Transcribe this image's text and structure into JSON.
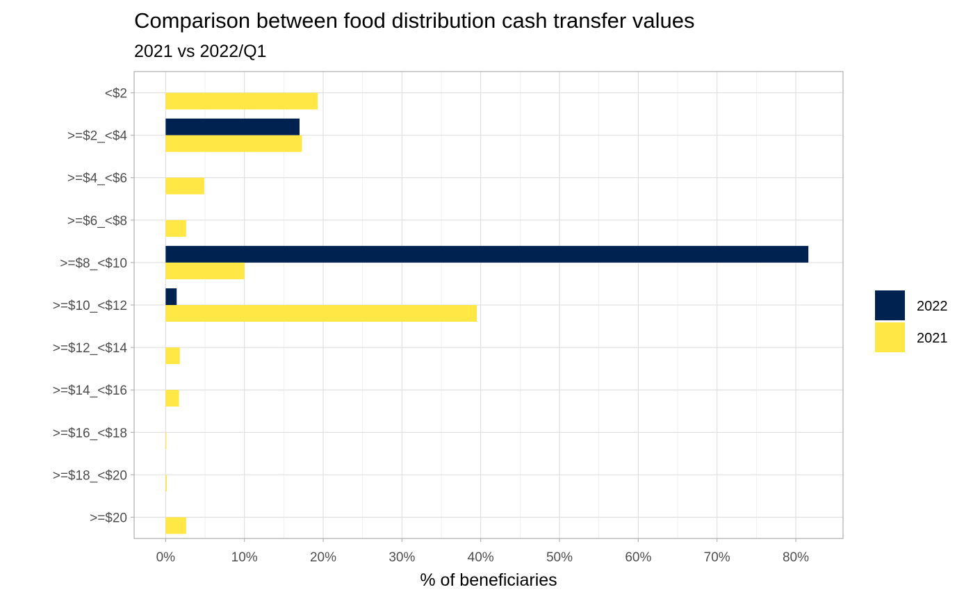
{
  "chart_data": {
    "type": "bar",
    "orientation": "horizontal",
    "title": "Comparison between food distribution cash transfer values",
    "subtitle": "2021 vs 2022/Q1",
    "xlabel": "% of beneficiaries",
    "ylabel": "",
    "xlim": [
      -4,
      86
    ],
    "x_ticks": [
      0,
      10,
      20,
      30,
      40,
      50,
      60,
      70,
      80
    ],
    "x_tick_labels": [
      "0%",
      "10%",
      "20%",
      "30%",
      "40%",
      "50%",
      "60%",
      "70%",
      "80%"
    ],
    "categories": [
      ">=$20",
      ">=$18_<$20",
      ">=$16_<$18",
      ">=$14_<$16",
      ">=$12_<$14",
      ">=$10_<$12",
      ">=$8_<$10",
      ">=$6_<$8",
      ">=$4_<$6",
      ">=$2_<$4",
      "<$2"
    ],
    "series": [
      {
        "name": "2022",
        "color": "#002250",
        "values": [
          0,
          0,
          0,
          0,
          0,
          1.4,
          81.6,
          0,
          0,
          17.0,
          0
        ]
      },
      {
        "name": "2021",
        "color": "#FFE845",
        "values": [
          2.6,
          0.15,
          0.1,
          1.7,
          1.8,
          39.5,
          10.0,
          2.6,
          4.9,
          17.3,
          19.3
        ]
      }
    ],
    "legend_position": "right",
    "grid": true
  }
}
